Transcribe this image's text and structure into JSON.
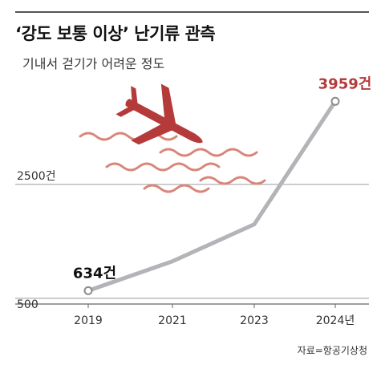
{
  "title": "‘강도 보통 이상’ 난기류 관측",
  "subtitle": "기내서 걷기가 어려운 정도",
  "source": "자료=항공기상청",
  "colors": {
    "line": "#b3b3b8",
    "accent": "#b53a3a",
    "plane": "#b53a3a",
    "waves": "#d9857a",
    "grid": "#9a9a9a"
  },
  "chart_data": {
    "type": "line",
    "x": [
      2019,
      2021,
      2023,
      2024
    ],
    "x_tick_labels": [
      "2019",
      "2021",
      "2023",
      "2024년"
    ],
    "y_tick_labels": [
      "500",
      "2500건"
    ],
    "y_ticks": [
      500,
      2500
    ],
    "values": [
      634,
      1150,
      1800,
      3959
    ],
    "data_labels": [
      {
        "index": 0,
        "text": "634건",
        "color": "#111111"
      },
      {
        "index": 3,
        "text": "3959건",
        "color": "#b53a3a"
      }
    ],
    "ylim": [
      400,
      4400
    ],
    "grid": true,
    "illustration": "airplane-in-turbulence"
  }
}
